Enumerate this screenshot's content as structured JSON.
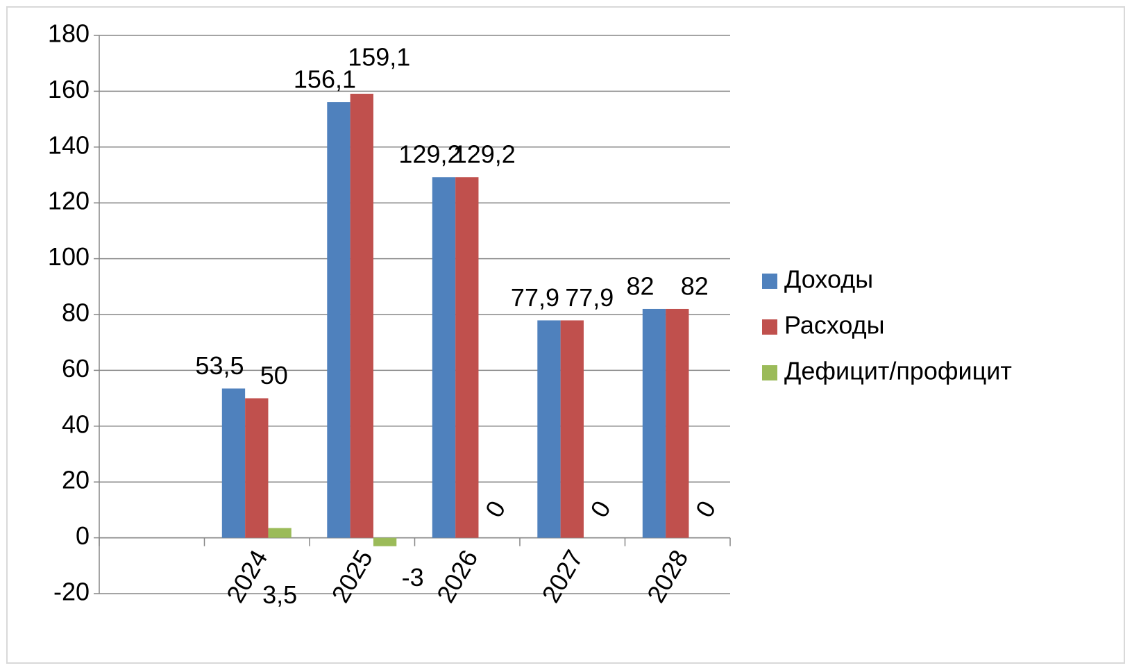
{
  "chart_data": {
    "type": "bar",
    "categories": [
      null,
      "2024",
      "2025",
      "2026",
      "2027",
      "2028"
    ],
    "series": [
      {
        "name": "Доходы",
        "color": "#4f81bd",
        "values": [
          null,
          53.5,
          156.1,
          129.2,
          77.9,
          82
        ],
        "value_labels": [
          null,
          "53,5",
          "156,1",
          "129,2",
          "77,9",
          "82"
        ]
      },
      {
        "name": "Расходы",
        "color": "#c0504d",
        "values": [
          null,
          50,
          159.1,
          129.2,
          77.9,
          82
        ],
        "value_labels": [
          null,
          "50",
          "159,1",
          "129,2",
          "77,9",
          "82"
        ]
      },
      {
        "name": "Дефицит/профицит",
        "color": "#9bbb59",
        "values": [
          null,
          3.5,
          -3,
          0,
          0,
          0
        ],
        "value_labels": [
          null,
          "3,5",
          "-3",
          "0",
          "0",
          "0"
        ]
      }
    ],
    "ylim": [
      -20,
      180
    ],
    "yticks": [
      -20,
      0,
      20,
      40,
      60,
      80,
      100,
      120,
      140,
      160,
      180
    ],
    "grid": true,
    "legend": "right"
  }
}
